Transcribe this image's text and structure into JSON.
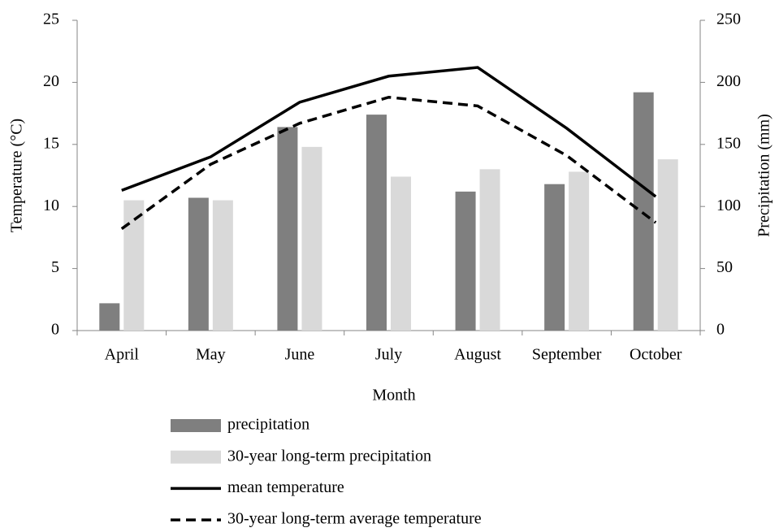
{
  "chart_data": {
    "type": "bar-line",
    "x_label": "Month",
    "y_label": "Temperature (°C)",
    "y2_label": "Precipitation (mm)",
    "categories": [
      "April",
      "May",
      "June",
      "July",
      "August",
      "September",
      "October"
    ],
    "ylim": [
      0,
      25
    ],
    "yticks": [
      0,
      5,
      10,
      15,
      20,
      25
    ],
    "y2lim": [
      0,
      250
    ],
    "y2ticks": [
      0,
      50,
      100,
      150,
      200,
      250
    ],
    "series": [
      {
        "name": "precipitation",
        "type": "bar",
        "axis": "y2",
        "color": "#7f7f7f",
        "values": [
          22,
          107,
          164,
          174,
          112,
          118,
          192
        ]
      },
      {
        "name": "30-year long-term precipitation",
        "type": "bar",
        "axis": "y2",
        "color": "#d9d9d9",
        "values": [
          105,
          105,
          148,
          124,
          130,
          128,
          138
        ]
      },
      {
        "name": "mean temperature",
        "type": "line",
        "color": "#000000",
        "dash": false,
        "values": [
          11.3,
          14.0,
          18.4,
          20.5,
          21.2,
          16.3,
          10.8
        ]
      },
      {
        "name": "30-year long-term average temperature",
        "type": "line",
        "color": "#000000",
        "dash": true,
        "values": [
          8.2,
          13.4,
          16.7,
          18.8,
          18.1,
          14.1,
          8.7
        ]
      }
    ]
  }
}
